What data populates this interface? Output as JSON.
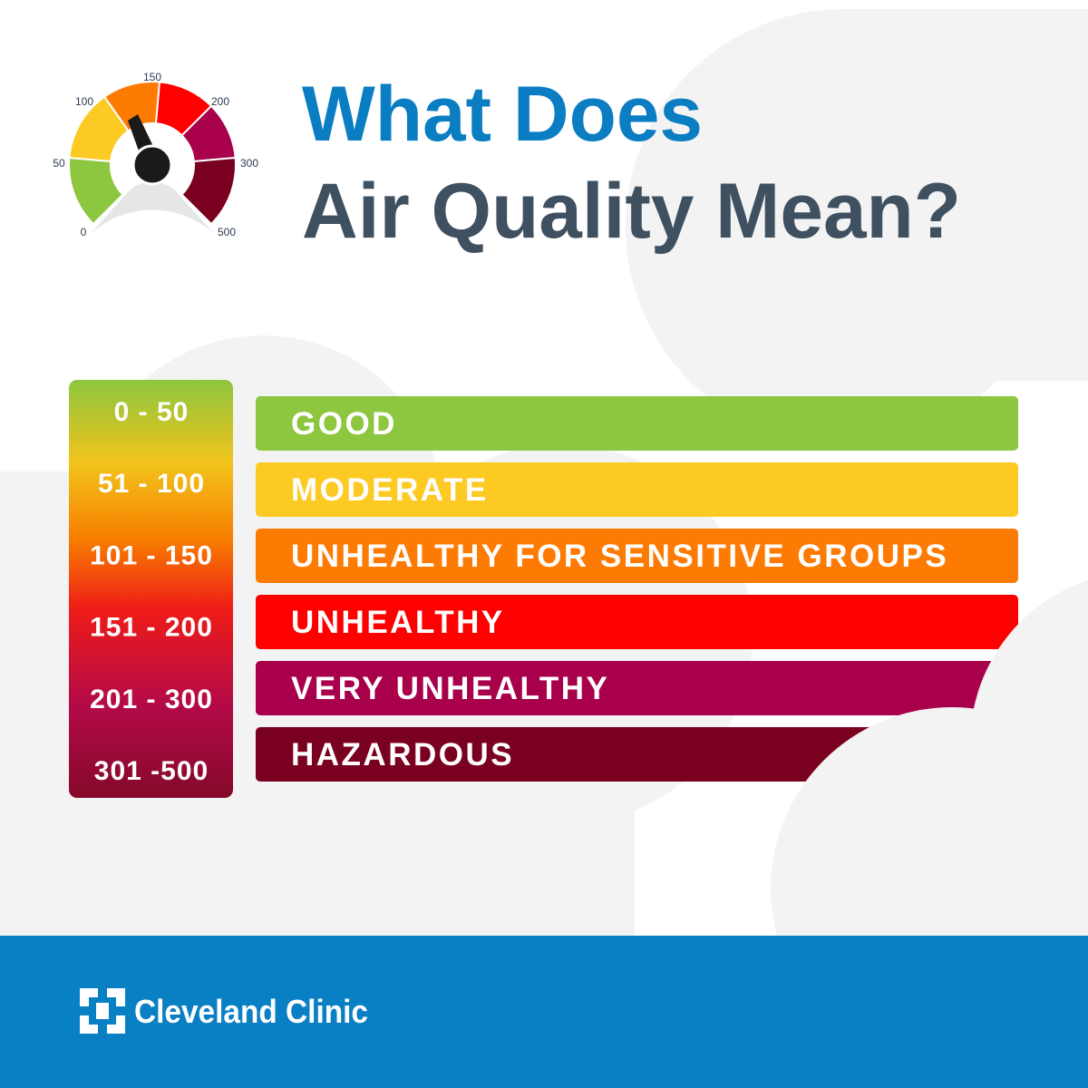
{
  "header": {
    "title_line1": "What Does",
    "title_line2": "Air Quality Mean?"
  },
  "gauge": {
    "labels": [
      "0",
      "50",
      "100",
      "150",
      "200",
      "300",
      "500"
    ]
  },
  "scale": {
    "rows": [
      {
        "range": "0 - 50",
        "category": "GOOD"
      },
      {
        "range": "51 - 100",
        "category": "MODERATE"
      },
      {
        "range": "101 - 150",
        "category": "UNHEALTHY FOR SENSITIVE GROUPS"
      },
      {
        "range": "151 - 200",
        "category": "UNHEALTHY"
      },
      {
        "range": "201 - 300",
        "category": "VERY UNHEALTHY"
      },
      {
        "range": "301 -500",
        "category": "HAZARDOUS"
      }
    ]
  },
  "footer": {
    "brand": "Cleveland Clinic"
  }
}
